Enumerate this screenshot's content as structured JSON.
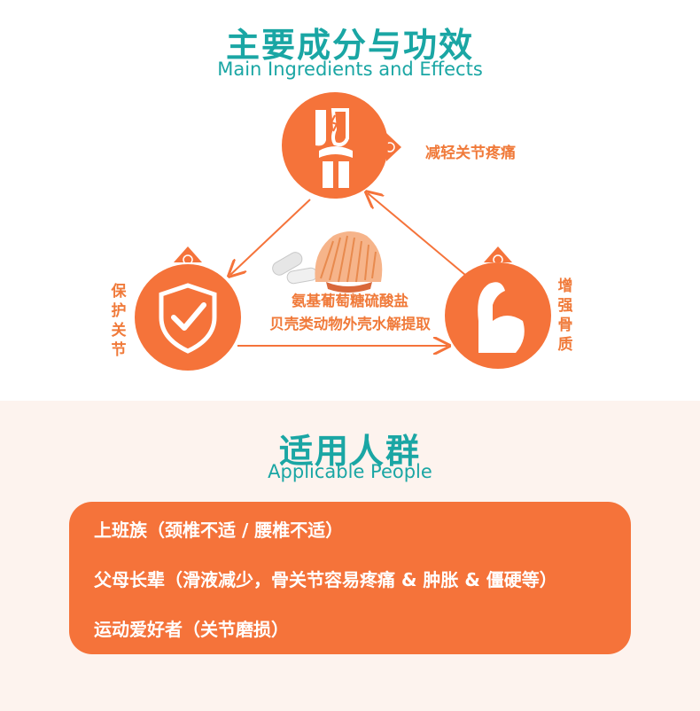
{
  "header": {
    "title_cn": "主要成分与功效",
    "title_en": "Main Ingredients and Effects"
  },
  "effects": {
    "top_label": "减轻关节疼痛",
    "left_label": "保护关节",
    "right_label": "增强骨质",
    "ingredient_line1": "氨基葡萄糖硫酸盐",
    "ingredient_line2": "贝壳类动物外壳水解提取"
  },
  "people": {
    "title_cn": "适用人群",
    "title_en": "Applicable People",
    "items": [
      "上班族（颈椎不适 / 腰椎不适）",
      "父母长辈（滑液减少，骨关节容易疼痛 & 肿胀 & 僵硬等）",
      "运动爱好者（关节磨损）"
    ]
  },
  "colors": {
    "teal": "#1aa6a4",
    "orange": "#f5733a",
    "text_orange": "#f07a3a",
    "bottom_bg": "#fdf3ee"
  },
  "icons": [
    "knee-joint-icon",
    "shield-check-icon",
    "flexed-arm-icon",
    "capsule-icon",
    "shell-icon"
  ]
}
